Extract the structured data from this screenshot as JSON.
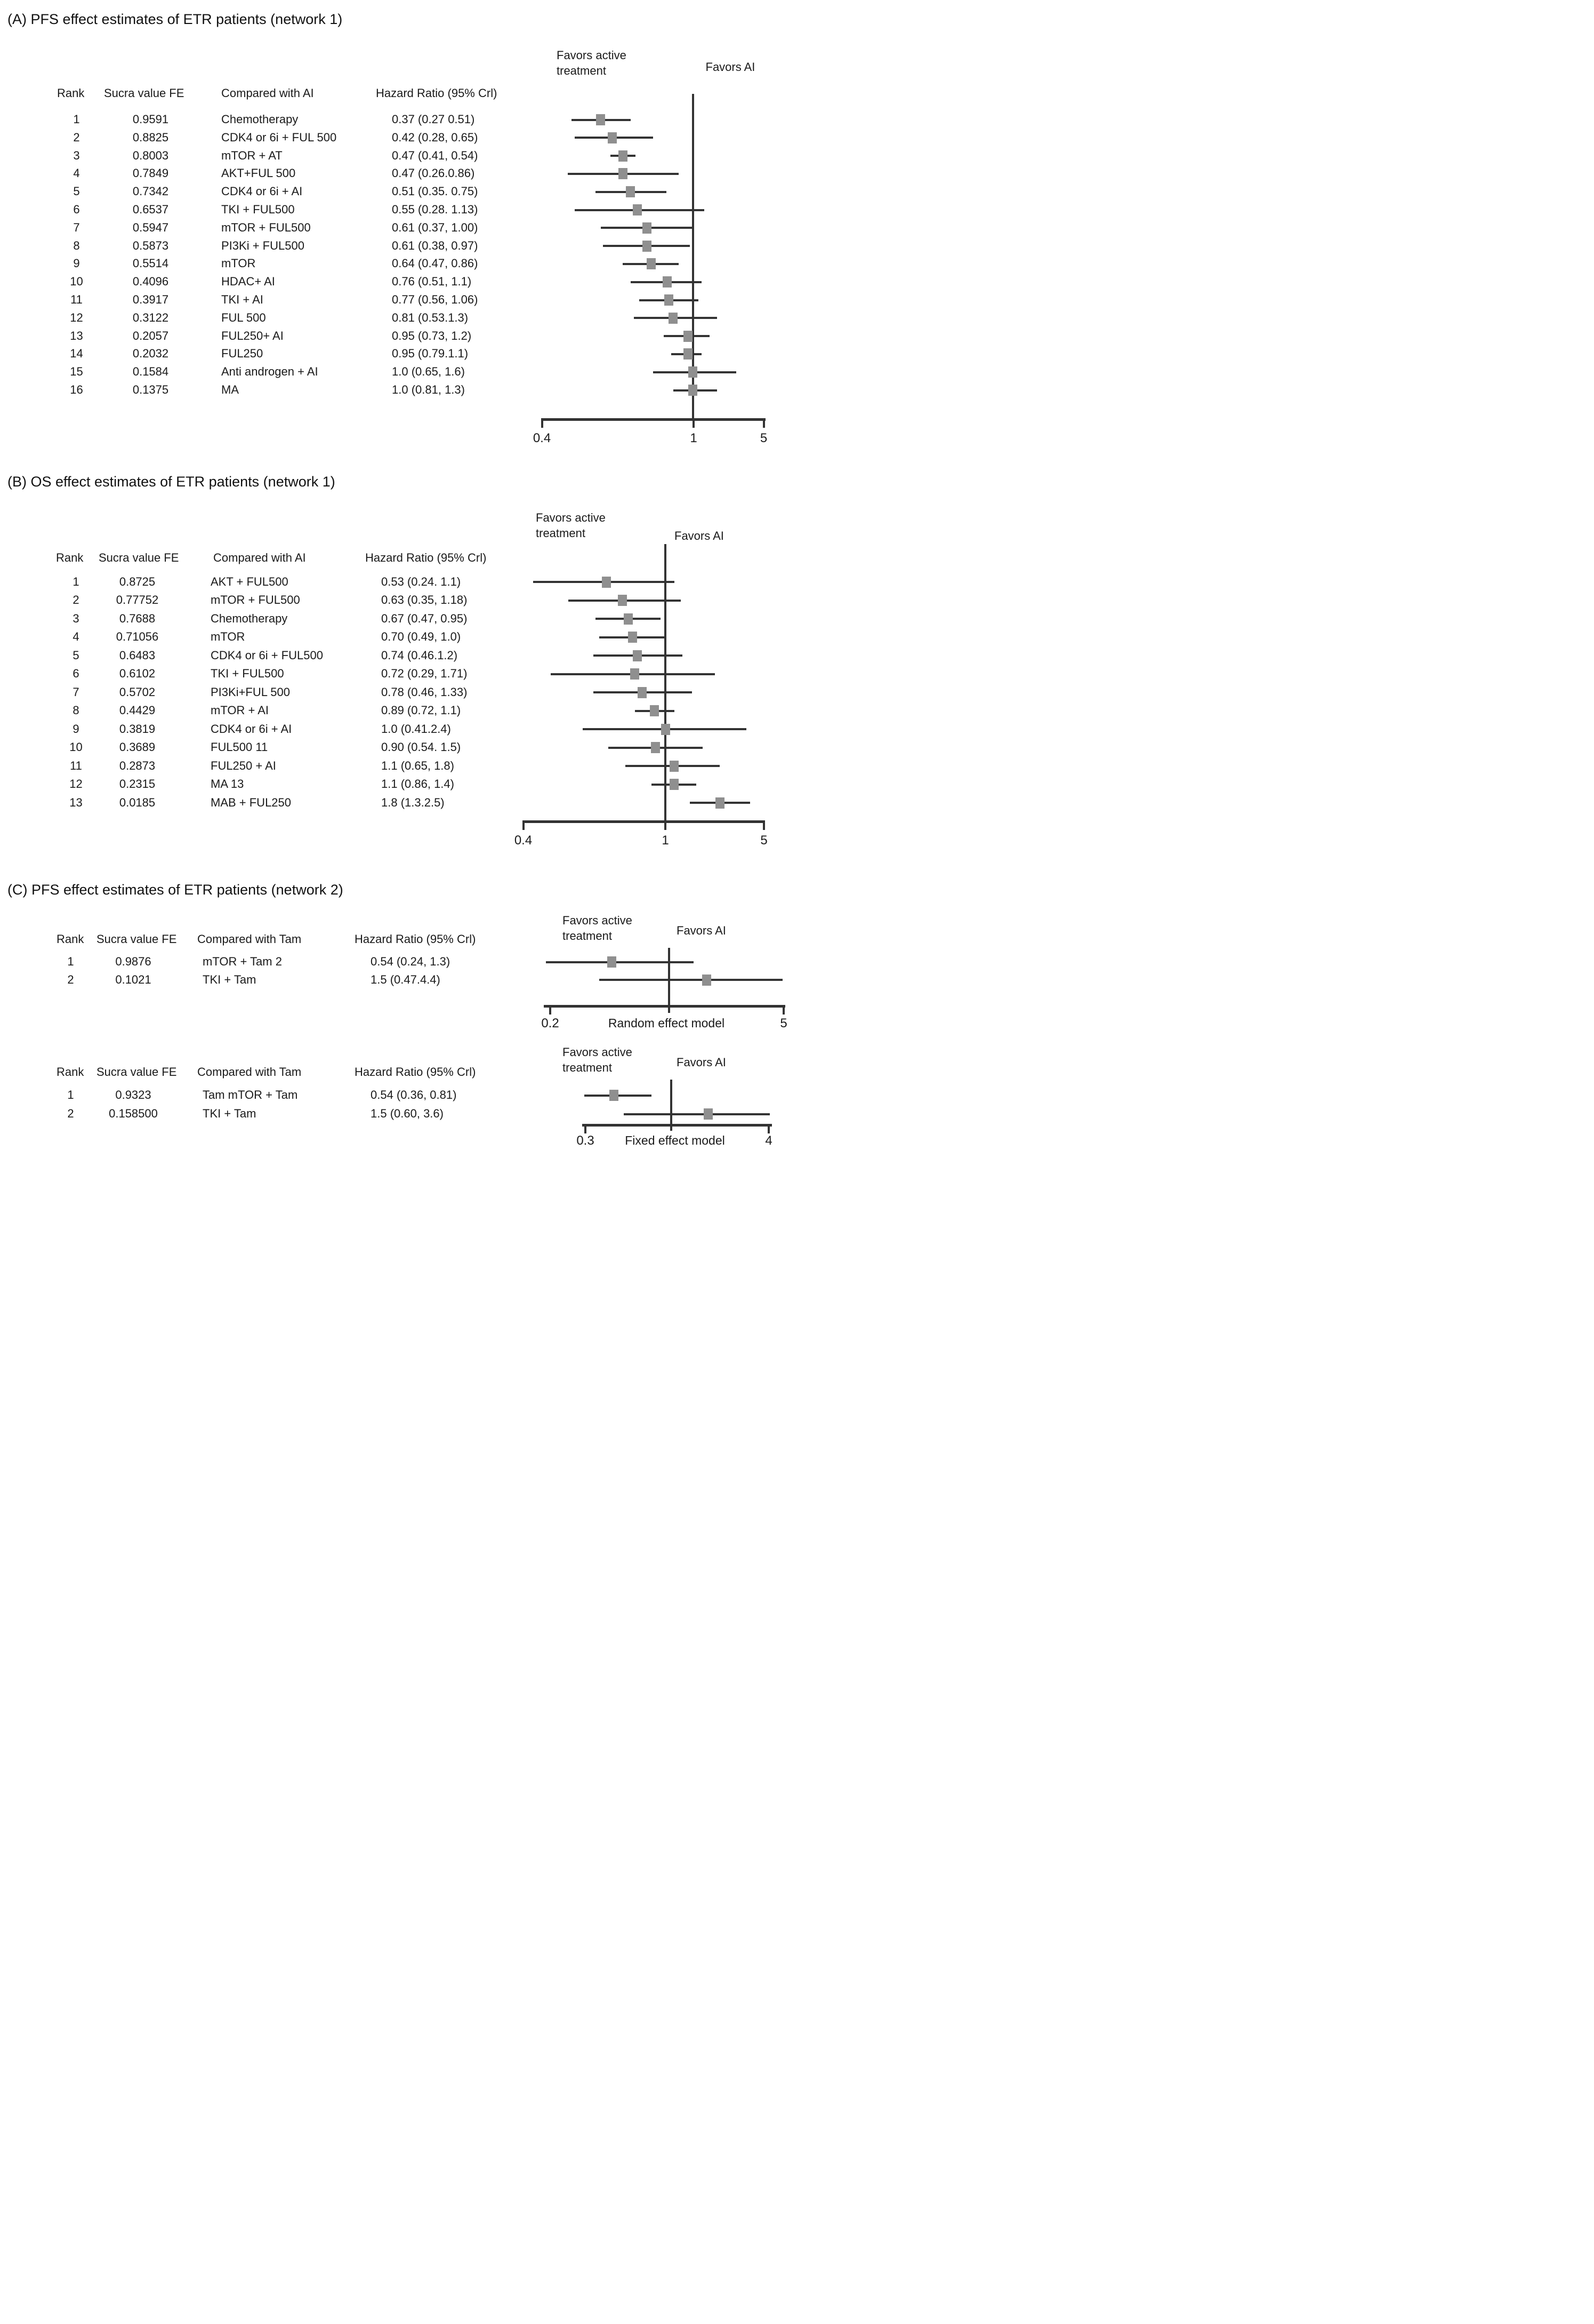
{
  "figure": {
    "colors": {
      "marker": "#8f8f8f",
      "line": "#333333",
      "text": "#1a1a1a",
      "background": "#ffffff"
    },
    "panels": [
      {
        "id": "A",
        "title": "(A) PFS effect estimates of ETR patients (network 1)",
        "sections": [
          {
            "key": "A0",
            "favors_left": "Favors active\ntreatment",
            "favors_right": "Favors AI",
            "table_headers": [
              "Rank",
              "Sucra value FE",
              "Compared with AI",
              "Hazard Ratio (95% Crl)"
            ],
            "rows": [
              {
                "rank": "1",
                "sucra": "0.9591",
                "comparator": "Chemotherapy",
                "hr_text": "0.37 (0.27 0.51)",
                "hr": [
                  0.37,
                  0.27,
                  0.51
                ]
              },
              {
                "rank": "2",
                "sucra": "0.8825",
                "comparator": "CDK4 or 6i + FUL 500",
                "hr_text": "0.42 (0.28, 0.65)",
                "hr": [
                  0.42,
                  0.28,
                  0.65
                ]
              },
              {
                "rank": "3",
                "sucra": "0.8003",
                "comparator": "mTOR + AT",
                "hr_text": "0.47 (0.41, 0.54)",
                "hr": [
                  0.47,
                  0.41,
                  0.54
                ]
              },
              {
                "rank": "4",
                "sucra": "0.7849",
                "comparator": "AKT+FUL 500",
                "hr_text": "0.47 (0.26.0.86)",
                "hr": [
                  0.47,
                  0.26,
                  0.86
                ]
              },
              {
                "rank": "5",
                "sucra": "0.7342",
                "comparator": "CDK4 or 6i + AI",
                "hr_text": "0.51 (0.35. 0.75)",
                "hr": [
                  0.51,
                  0.35,
                  0.75
                ]
              },
              {
                "rank": "6",
                "sucra": "0.6537",
                "comparator": "TKI + FUL500",
                "hr_text": "0.55 (0.28. 1.13)",
                "hr": [
                  0.55,
                  0.28,
                  1.13
                ]
              },
              {
                "rank": "7",
                "sucra": "0.5947",
                "comparator": "mTOR + FUL500",
                "hr_text": "0.61 (0.37, 1.00)",
                "hr": [
                  0.61,
                  0.37,
                  1.0
                ]
              },
              {
                "rank": "8",
                "sucra": "0.5873",
                "comparator": "PI3Ki + FUL500",
                "hr_text": "0.61 (0.38, 0.97)",
                "hr": [
                  0.61,
                  0.38,
                  0.97
                ]
              },
              {
                "rank": "9",
                "sucra": "0.5514",
                "comparator": "mTOR",
                "hr_text": "0.64 (0.47, 0.86)",
                "hr": [
                  0.64,
                  0.47,
                  0.86
                ]
              },
              {
                "rank": "10",
                "sucra": "0.4096",
                "comparator": "HDAC+ AI",
                "hr_text": "0.76 (0.51, 1.1)",
                "hr": [
                  0.76,
                  0.51,
                  1.1
                ]
              },
              {
                "rank": "11",
                "sucra": "0.3917",
                "comparator": "TKI + AI",
                "hr_text": "0.77 (0.56, 1.06)",
                "hr": [
                  0.77,
                  0.56,
                  1.06
                ]
              },
              {
                "rank": "12",
                "sucra": "0.3122",
                "comparator": "FUL 500",
                "hr_text": "0.81 (0.53.1.3)",
                "hr": [
                  0.81,
                  0.53,
                  1.3
                ]
              },
              {
                "rank": "13",
                "sucra": "0.2057",
                "comparator": "FUL250+ AI",
                "hr_text": "0.95 (0.73, 1.2)",
                "hr": [
                  0.95,
                  0.73,
                  1.2
                ]
              },
              {
                "rank": "14",
                "sucra": "0.2032",
                "comparator": "FUL250",
                "hr_text": "0.95 (0.79.1.1)",
                "hr": [
                  0.95,
                  0.79,
                  1.1
                ]
              },
              {
                "rank": "15",
                "sucra": "0.1584",
                "comparator": "Anti androgen + AI",
                "hr_text": "1.0 (0.65, 1.6)",
                "hr": [
                  1.0,
                  0.65,
                  1.6
                ]
              },
              {
                "rank": "16",
                "sucra": "0.1375",
                "comparator": "MA",
                "hr_text": "1.0 (0.81, 1.3)",
                "hr": [
                  1.0,
                  0.81,
                  1.3
                ]
              }
            ]
          }
        ]
      },
      {
        "id": "B",
        "title": "(B) OS effect estimates of ETR patients (network 1)",
        "sections": [
          {
            "key": "B0",
            "favors_left": "Favors active\ntreatment",
            "favors_right": "Favors AI",
            "table_headers": [
              "Rank",
              "Sucra value FE",
              "Compared with AI",
              "Hazard Ratio (95% Crl)"
            ],
            "rows": [
              {
                "rank": "1",
                "sucra": "0.8725",
                "comparator": "AKT + FUL500",
                "hr_text": "0.53 (0.24. 1.1)",
                "hr": [
                  0.53,
                  0.24,
                  1.1
                ]
              },
              {
                "rank": "2",
                "sucra": "0.77752",
                "comparator": "mTOR + FUL500",
                "hr_text": "0.63 (0.35, 1.18)",
                "hr": [
                  0.63,
                  0.35,
                  1.18
                ]
              },
              {
                "rank": "3",
                "sucra": "0.7688",
                "comparator": "Chemotherapy",
                "hr_text": "0.67 (0.47, 0.95)",
                "hr": [
                  0.67,
                  0.47,
                  0.95
                ]
              },
              {
                "rank": "4",
                "sucra": "0.71056",
                "comparator": "mTOR",
                "hr_text": "0.70 (0.49, 1.0)",
                "hr": [
                  0.7,
                  0.49,
                  1.0
                ]
              },
              {
                "rank": "5",
                "sucra": "0.6483",
                "comparator": "CDK4 or 6i + FUL500",
                "hr_text": "0.74 (0.46.1.2)",
                "hr": [
                  0.74,
                  0.46,
                  1.2
                ]
              },
              {
                "rank": "6",
                "sucra": "0.6102",
                "comparator": "TKI + FUL500",
                "hr_text": "0.72 (0.29, 1.71)",
                "hr": [
                  0.72,
                  0.29,
                  1.71
                ]
              },
              {
                "rank": "7",
                "sucra": "0.5702",
                "comparator": "PI3Ki+FUL 500",
                "hr_text": "0.78 (0.46, 1.33)",
                "hr": [
                  0.78,
                  0.46,
                  1.33
                ]
              },
              {
                "rank": "8",
                "sucra": "0.4429",
                "comparator": "mTOR + AI",
                "hr_text": "0.89 (0.72, 1.1)",
                "hr": [
                  0.89,
                  0.72,
                  1.1
                ]
              },
              {
                "rank": "9",
                "sucra": "0.3819",
                "comparator": "CDK4 or 6i + AI",
                "hr_text": "1.0 (0.41.2.4)",
                "hr": [
                  1.0,
                  0.41,
                  2.4
                ]
              },
              {
                "rank": "10",
                "sucra": "0.3689",
                "comparator": "FUL500 11",
                "hr_text": "0.90 (0.54. 1.5)",
                "hr": [
                  0.9,
                  0.54,
                  1.5
                ]
              },
              {
                "rank": "11",
                "sucra": "0.2873",
                "comparator": "FUL250 + AI",
                "hr_text": "1.1 (0.65, 1.8)",
                "hr": [
                  1.1,
                  0.65,
                  1.8
                ]
              },
              {
                "rank": "12",
                "sucra": "0.2315",
                "comparator": "MA 13",
                "hr_text": "1.1 (0.86, 1.4)",
                "hr": [
                  1.1,
                  0.86,
                  1.4
                ]
              },
              {
                "rank": "13",
                "sucra": "0.0185",
                "comparator": "MAB + FUL250",
                "hr_text": "1.8 (1.3.2.5)",
                "hr": [
                  1.8,
                  1.3,
                  2.5
                ]
              }
            ]
          }
        ]
      },
      {
        "id": "C",
        "title": "(C) PFS effect estimates of ETR patients (network 2)",
        "sections": [
          {
            "key": "C0",
            "favors_left": "Favors active\ntreatment",
            "favors_right": "Favors AI",
            "model_label": "Random effect model",
            "table_headers": [
              "Rank",
              "Sucra value FE",
              "Compared with Tam",
              "Hazard Ratio (95% Crl)"
            ],
            "rows": [
              {
                "rank": "1",
                "sucra": "0.9876",
                "comparator": "mTOR + Tam 2",
                "hr_text": "0.54 (0.24, 1.3)",
                "hr": [
                  0.54,
                  0.24,
                  1.3
                ]
              },
              {
                "rank": "2",
                "sucra": "0.1021",
                "comparator": "TKI + Tam",
                "hr_text": "1.5 (0.47.4.4)",
                "hr": [
                  1.5,
                  0.47,
                  4.4
                ]
              }
            ]
          },
          {
            "key": "C1",
            "favors_left": "Favors active\ntreatment",
            "favors_right": "Favors AI",
            "model_label": "Fixed effect model",
            "table_headers": [
              "Rank",
              "Sucra value FE",
              "Compared with Tam",
              "Hazard Ratio (95% Crl)"
            ],
            "rows": [
              {
                "rank": "1",
                "sucra": "0.9323",
                "comparator": "Tam mTOR + Tam",
                "hr_text": "0.54 (0.36, 0.81)",
                "hr": [
                  0.54,
                  0.36,
                  0.81
                ]
              },
              {
                "rank": "2",
                "sucra": "0.158500",
                "comparator": "TKI + Tam",
                "hr_text": "1.5 (0.60, 3.6)",
                "hr": [
                  1.5,
                  0.6,
                  3.6
                ]
              }
            ]
          }
        ]
      }
    ]
  },
  "chart_data": [
    {
      "type": "scatter",
      "variant": "forest-plot",
      "title": "(A) PFS effect estimates of ETR patients (network 1)",
      "xlabel": "Hazard Ratio (95% Crl)",
      "xscale": "log",
      "xlim": [
        0.4,
        5
      ],
      "x_ticks": [
        0.4,
        1,
        5
      ],
      "ref_line": 1,
      "legend_left": "Favors active treatment",
      "legend_right": "Favors AI",
      "categories": [
        "Chemotherapy",
        "CDK4 or 6i + FUL 500",
        "mTOR + AT",
        "AKT+FUL 500",
        "CDK4 or 6i + AI",
        "TKI + FUL500",
        "mTOR + FUL500",
        "PI3Ki + FUL500",
        "mTOR",
        "HDAC+ AI",
        "TKI + AI",
        "FUL 500",
        "FUL250+ AI",
        "FUL250",
        "Anti androgen + AI",
        "MA"
      ],
      "sucra_fe": [
        0.9591,
        0.8825,
        0.8003,
        0.7849,
        0.7342,
        0.6537,
        0.5947,
        0.5873,
        0.5514,
        0.4096,
        0.3917,
        0.3122,
        0.2057,
        0.2032,
        0.1584,
        0.1375
      ],
      "series": [
        {
          "name": "Hazard Ratio",
          "values": [
            0.37,
            0.42,
            0.47,
            0.47,
            0.51,
            0.55,
            0.61,
            0.61,
            0.64,
            0.76,
            0.77,
            0.81,
            0.95,
            0.95,
            1.0,
            1.0
          ]
        }
      ],
      "ci_low": [
        0.27,
        0.28,
        0.41,
        0.26,
        0.35,
        0.28,
        0.37,
        0.38,
        0.47,
        0.51,
        0.56,
        0.53,
        0.73,
        0.79,
        0.65,
        0.81
      ],
      "ci_high": [
        0.51,
        0.65,
        0.54,
        0.86,
        0.75,
        1.13,
        1.0,
        0.97,
        0.86,
        1.1,
        1.06,
        1.3,
        1.2,
        1.1,
        1.6,
        1.3
      ]
    },
    {
      "type": "scatter",
      "variant": "forest-plot",
      "title": "(B) OS effect estimates of ETR patients (network 1)",
      "xlabel": "Hazard Ratio (95% Crl)",
      "xscale": "log",
      "xlim": [
        0.4,
        5
      ],
      "x_ticks": [
        0.4,
        1,
        5
      ],
      "ref_line": 1,
      "legend_left": "Favors active treatment",
      "legend_right": "Favors AI",
      "categories": [
        "AKT + FUL500",
        "mTOR + FUL500",
        "Chemotherapy",
        "mTOR",
        "CDK4 or 6i + FUL500",
        "TKI + FUL500",
        "PI3Ki+FUL 500",
        "mTOR + AI",
        "CDK4 or 6i + AI",
        "FUL500 11",
        "FUL250 + AI",
        "MA 13",
        "MAB + FUL250"
      ],
      "sucra_fe": [
        0.8725,
        0.77752,
        0.7688,
        0.71056,
        0.6483,
        0.6102,
        0.5702,
        0.4429,
        0.3819,
        0.3689,
        0.2873,
        0.2315,
        0.0185
      ],
      "series": [
        {
          "name": "Hazard Ratio",
          "values": [
            0.53,
            0.63,
            0.67,
            0.7,
            0.74,
            0.72,
            0.78,
            0.89,
            1.0,
            0.9,
            1.1,
            1.1,
            1.8
          ]
        }
      ],
      "ci_low": [
        0.24,
        0.35,
        0.47,
        0.49,
        0.46,
        0.29,
        0.46,
        0.72,
        0.41,
        0.54,
        0.65,
        0.86,
        1.3
      ],
      "ci_high": [
        1.1,
        1.18,
        0.95,
        1.0,
        1.2,
        1.71,
        1.33,
        1.1,
        2.4,
        1.5,
        1.8,
        1.4,
        2.5
      ]
    },
    {
      "type": "scatter",
      "variant": "forest-plot",
      "title": "(C) PFS effect estimates of ETR patients (network 2) - Random effect model",
      "xlabel": "Hazard Ratio (95% Crl)",
      "xscale": "log",
      "xlim": [
        0.2,
        5
      ],
      "x_ticks": [
        0.2,
        5
      ],
      "ref_line": 1,
      "legend_left": "Favors active treatment",
      "legend_right": "Favors AI",
      "categories": [
        "mTOR + Tam 2",
        "TKI + Tam"
      ],
      "sucra_fe": [
        0.9876,
        0.1021
      ],
      "series": [
        {
          "name": "Hazard Ratio",
          "values": [
            0.54,
            1.5
          ]
        }
      ],
      "ci_low": [
        0.24,
        0.47
      ],
      "ci_high": [
        1.3,
        4.4
      ]
    },
    {
      "type": "scatter",
      "variant": "forest-plot",
      "title": "(C) PFS effect estimates of ETR patients (network 2) - Fixed effect model",
      "xlabel": "Hazard Ratio (95% Crl)",
      "xscale": "log",
      "xlim": [
        0.3,
        4
      ],
      "x_ticks": [
        0.3,
        4
      ],
      "ref_line": 1,
      "legend_left": "Favors active treatment",
      "legend_right": "Favors AI",
      "categories": [
        "Tam mTOR + Tam",
        "TKI + Tam"
      ],
      "sucra_fe": [
        0.9323,
        0.1585
      ],
      "series": [
        {
          "name": "Hazard Ratio",
          "values": [
            0.54,
            1.5
          ]
        }
      ],
      "ci_low": [
        0.36,
        0.6
      ],
      "ci_high": [
        0.81,
        3.6
      ]
    }
  ]
}
